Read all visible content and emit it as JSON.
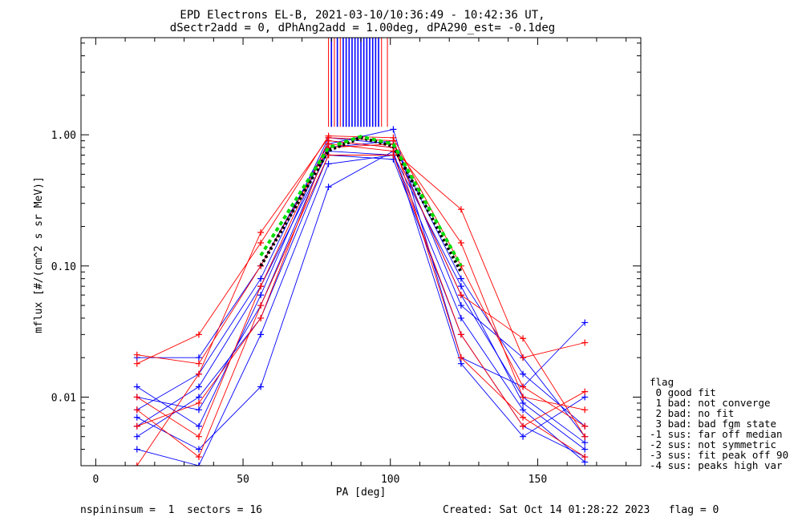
{
  "header": {
    "title_line1": "EPD Electrons EL-B, 2021-03-10/10:36:49 - 10:42:36 UT,",
    "title_line2": "dSectr2add = 0, dPhAng2add = 1.00deg, dPA290_est=  -0.1deg"
  },
  "footer": {
    "left": "nspininsum =  1  sectors = 16",
    "right": "Created: Sat Oct 14 01:28:22 2023   flag = 0"
  },
  "legend": {
    "title": "flag",
    "items": [
      " 0 good fit",
      " 1 bad: not converge",
      " 2 bad: no fit",
      " 3 bad: bad fgm state",
      "-1 sus: far off median",
      "-2 sus: not symmetric",
      "-3 sus: fit peak off 90",
      "-4 sus: peaks high var"
    ]
  },
  "colors": {
    "blue": "#0000ff",
    "red": "#ff0000",
    "black": "#000000",
    "green": "#00dd00"
  },
  "chart_data": {
    "type": "line",
    "xlabel": "PA [deg]",
    "ylabel": "mflux [#/(cm^2 s sr MeV)]",
    "xlim": [
      -5,
      185
    ],
    "ylim": [
      0.003,
      5.5
    ],
    "yscale": "log",
    "xticks": [
      0,
      50,
      100,
      150
    ],
    "xtick_labels": [
      "0",
      "50",
      "100",
      "150"
    ],
    "yticks": [
      0.01,
      0.1,
      1.0
    ],
    "ytick_labels": [
      "0.01",
      "0.10",
      "1.00"
    ],
    "grid": false,
    "pitch_angles": [
      14,
      35,
      56,
      79,
      101,
      124,
      145,
      166
    ],
    "series": [
      {
        "color": "blue",
        "values": [
          0.012,
          0.006,
          0.06,
          0.9,
          0.8,
          0.06,
          0.01,
          0.0045
        ]
      },
      {
        "color": "blue",
        "values": [
          0.005,
          0.01,
          0.04,
          0.7,
          0.65,
          0.03,
          0.006,
          0.0035
        ]
      },
      {
        "color": "blue",
        "values": [
          0.008,
          0.015,
          0.08,
          0.95,
          0.85,
          0.08,
          0.015,
          0.006
        ]
      },
      {
        "color": "blue",
        "values": [
          0.004,
          0.003,
          0.03,
          0.6,
          0.7,
          0.04,
          0.008,
          0.0032
        ]
      },
      {
        "color": "blue",
        "values": [
          0.02,
          0.02,
          0.1,
          0.85,
          1.1,
          0.02,
          0.012,
          0.037
        ]
      },
      {
        "color": "blue",
        "values": [
          0.007,
          0.004,
          0.012,
          0.4,
          0.75,
          0.018,
          0.005,
          0.01
        ]
      },
      {
        "color": "blue",
        "values": [
          0.01,
          0.008,
          0.05,
          0.8,
          0.9,
          0.05,
          0.02,
          0.005
        ]
      },
      {
        "color": "blue",
        "values": [
          0.006,
          0.012,
          0.07,
          0.75,
          0.7,
          0.07,
          0.009,
          0.004
        ]
      },
      {
        "color": "red",
        "values": [
          0.018,
          0.03,
          0.15,
          0.98,
          0.95,
          0.1,
          0.012,
          0.006
        ]
      },
      {
        "color": "red",
        "values": [
          0.01,
          0.005,
          0.07,
          0.9,
          0.8,
          0.06,
          0.028,
          0.005
        ]
      },
      {
        "color": "red",
        "values": [
          0.006,
          0.009,
          0.04,
          0.85,
          0.75,
          0.27,
          0.02,
          0.026
        ]
      },
      {
        "color": "red",
        "values": [
          0.003,
          0.015,
          0.18,
          0.95,
          0.9,
          0.02,
          0.007,
          0.0035
        ]
      },
      {
        "color": "red",
        "values": [
          0.021,
          0.018,
          0.1,
          0.8,
          0.85,
          0.15,
          0.01,
          0.008
        ]
      },
      {
        "color": "red",
        "values": [
          0.008,
          0.0035,
          0.05,
          0.7,
          0.7,
          0.03,
          0.006,
          0.011
        ]
      }
    ],
    "fit_black": {
      "color": "black",
      "x": [
        56,
        79,
        90,
        101,
        124
      ],
      "values": [
        0.1,
        0.76,
        0.95,
        0.82,
        0.09
      ]
    },
    "fit_green": {
      "color": "green",
      "x": [
        56,
        79,
        90,
        101,
        124
      ],
      "values": [
        0.12,
        0.8,
        0.97,
        0.85,
        0.1
      ]
    },
    "upper_lines_blue_x": [
      80,
      82,
      84,
      85,
      86,
      87,
      88,
      89,
      90,
      91,
      92,
      93,
      94,
      95,
      96
    ],
    "upper_lines_red_x": [
      79,
      81,
      83,
      90,
      97,
      99
    ]
  }
}
